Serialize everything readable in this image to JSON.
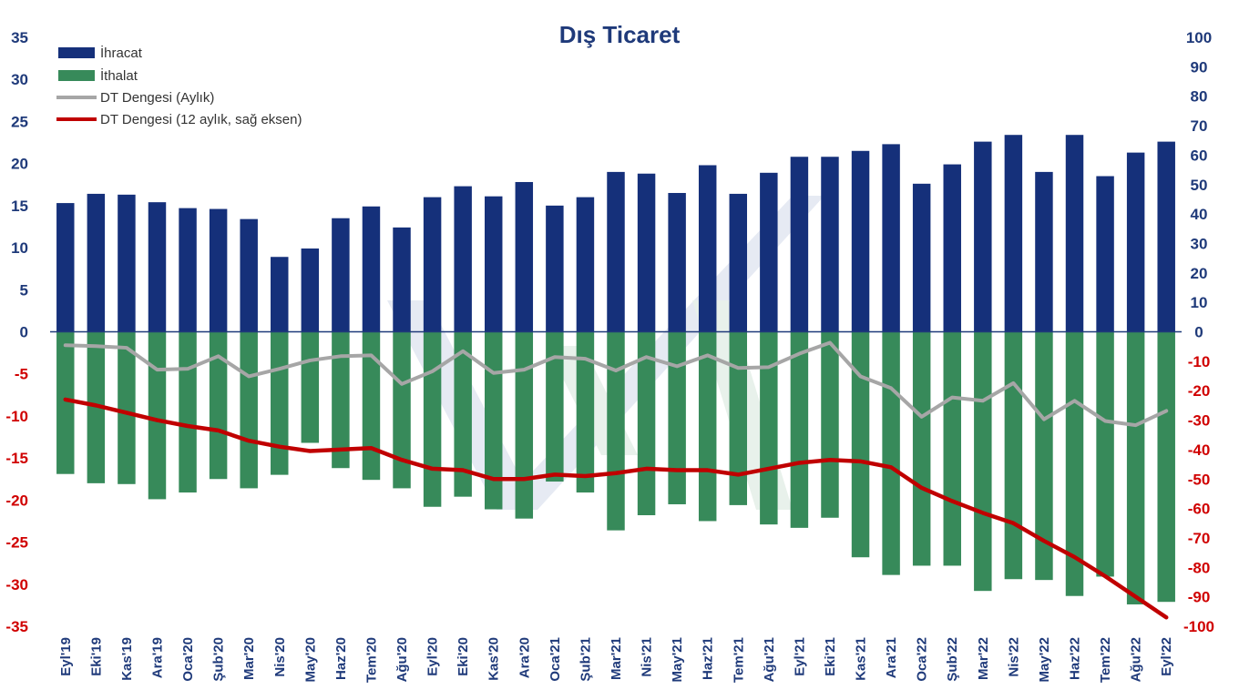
{
  "chart_data": {
    "type": "bar",
    "title": "Dış Ticaret",
    "categories": [
      "Eyl'19",
      "Eki'19",
      "Kas'19",
      "Ara'19",
      "Oca'20",
      "Şub'20",
      "Mar'20",
      "Nis'20",
      "May'20",
      "Haz'20",
      "Tem'20",
      "Ağu'20",
      "Eyl'20",
      "Eki'20",
      "Kas'20",
      "Ara'20",
      "Oca'21",
      "Şub'21",
      "Mar'21",
      "Nis'21",
      "May'21",
      "Haz'21",
      "Tem'21",
      "Ağu'21",
      "Eyl'21",
      "Eki'21",
      "Kas'21",
      "Ara'21",
      "Oca'22",
      "Şub'22",
      "Mar'22",
      "Nis'22",
      "May'22",
      "Haz'22",
      "Tem'22",
      "Ağu'22",
      "Eyl'22"
    ],
    "series": [
      {
        "name": "İhracat",
        "type": "bar",
        "axis": "left",
        "color": "#15307A",
        "values": [
          15.3,
          16.4,
          16.3,
          15.4,
          14.7,
          14.6,
          13.4,
          8.9,
          9.9,
          13.5,
          14.9,
          12.4,
          16.0,
          17.3,
          16.1,
          17.8,
          15.0,
          16.0,
          19.0,
          18.8,
          16.5,
          19.8,
          16.4,
          18.9,
          20.8,
          20.8,
          21.5,
          22.3,
          17.6,
          19.9,
          22.6,
          23.4,
          19.0,
          23.4,
          18.5,
          21.3,
          22.6
        ]
      },
      {
        "name": "İthalat",
        "type": "bar",
        "axis": "left",
        "color": "#378A5A",
        "values": [
          -16.9,
          -18.0,
          -18.1,
          -19.9,
          -19.1,
          -17.5,
          -18.6,
          -17.0,
          -13.2,
          -16.2,
          -17.6,
          -18.6,
          -20.8,
          -19.6,
          -21.1,
          -22.2,
          -17.8,
          -19.1,
          -23.6,
          -21.8,
          -20.5,
          -22.5,
          -20.6,
          -22.9,
          -23.3,
          -22.1,
          -26.8,
          -28.9,
          -27.8,
          -27.8,
          -30.8,
          -29.4,
          -29.5,
          -31.4,
          -29.1,
          -32.4,
          -32.1
        ]
      },
      {
        "name": "DT Dengesi (Aylık)",
        "type": "line",
        "axis": "left",
        "color": "#A6A6A6",
        "values": [
          -1.6,
          -1.7,
          -1.9,
          -4.5,
          -4.4,
          -2.9,
          -5.3,
          -4.4,
          -3.4,
          -2.9,
          -2.8,
          -6.2,
          -4.7,
          -2.3,
          -4.9,
          -4.5,
          -3.0,
          -3.2,
          -4.6,
          -3.0,
          -4.1,
          -2.8,
          -4.3,
          -4.2,
          -2.6,
          -1.3,
          -5.3,
          -6.7,
          -10.1,
          -7.8,
          -8.2,
          -6.1,
          -10.4,
          -8.2,
          -10.6,
          -11.1,
          -9.4
        ]
      },
      {
        "name": "DT Dengesi (12 aylık, sağ eksen)",
        "type": "line",
        "axis": "right",
        "color": "#C00000",
        "values": [
          -23,
          -25,
          -27.5,
          -30,
          -32,
          -33.5,
          -37,
          -39,
          -40.5,
          -40,
          -39.5,
          -43.5,
          -46.5,
          -47,
          -50,
          -50,
          -48.5,
          -49,
          -48,
          -46.5,
          -47,
          -47,
          -48.5,
          -46.5,
          -44.5,
          -43.5,
          -44,
          -46,
          -53,
          -57.5,
          -61.5,
          -65,
          -71,
          -76.5,
          -83,
          -90,
          -97
        ]
      }
    ],
    "y_left": {
      "min": -35,
      "max": 35,
      "step": 5,
      "tick_labels": [
        "35",
        "30",
        "25",
        "20",
        "15",
        "10",
        "5",
        "0",
        "-5",
        "-10",
        "-15",
        "-20",
        "-25",
        "-30",
        "-35"
      ]
    },
    "y_right": {
      "min": -100,
      "max": 100,
      "step": 10,
      "tick_labels": [
        "100",
        "90",
        "80",
        "70",
        "60",
        "50",
        "40",
        "30",
        "20",
        "10",
        "0",
        "-10",
        "-20",
        "-30",
        "-40",
        "-50",
        "-60",
        "-70",
        "-80",
        "-90",
        "-100"
      ]
    },
    "legend_position": "top-left",
    "grid": false
  },
  "colors": {
    "left_axis_positive": "#1F3A7A",
    "left_axis_negative": "#D00000",
    "right_axis_positive": "#1F3A7A",
    "right_axis_negative": "#D00000",
    "watermark": "#C8D2E6"
  }
}
